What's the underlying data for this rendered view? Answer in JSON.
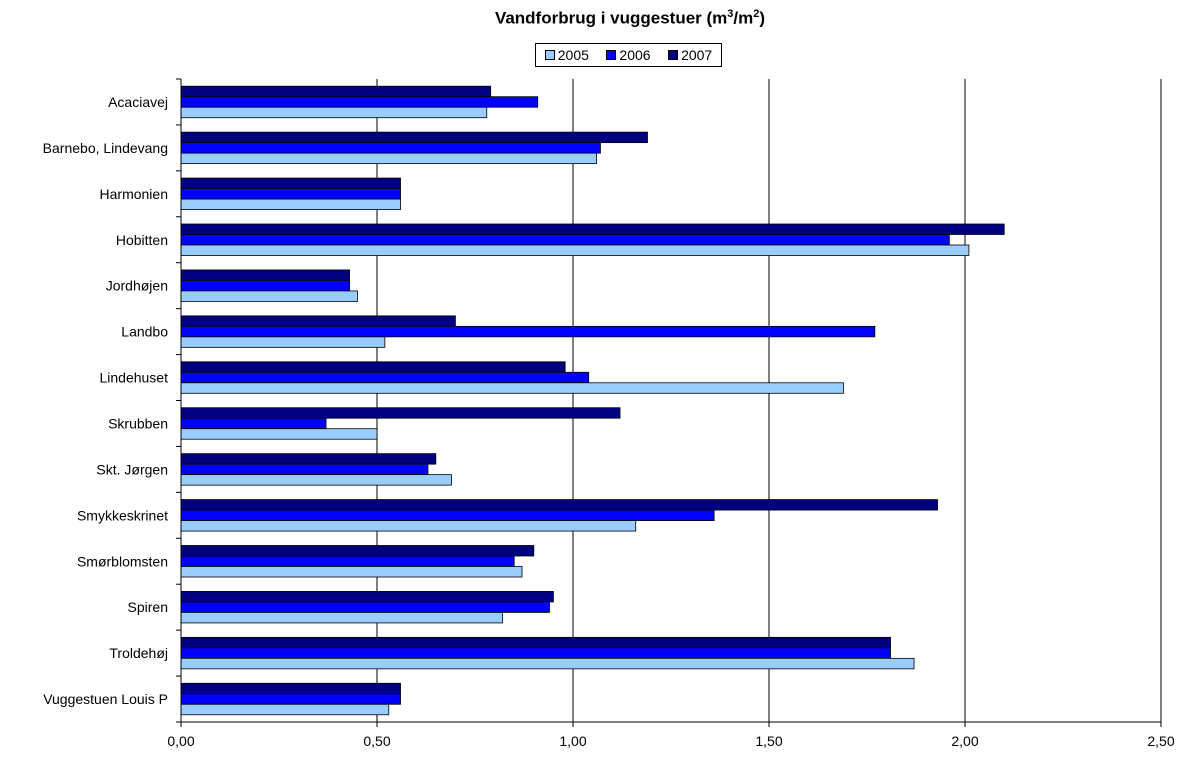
{
  "chart_data": {
    "type": "bar",
    "orientation": "horizontal",
    "title_main": "Vandforbrug i vuggestuer (m",
    "title_sup1": "3",
    "title_mid": "/m",
    "title_sup2": "2",
    "title_end": ")",
    "categories": [
      "Acaciavej",
      "Barnebo, Lindevang",
      "Harmonien",
      "Hobitten",
      "Jordhøjen",
      "Landbo",
      "Lindehuset",
      "Skrubben",
      "Skt. Jørgen",
      "Smykkeskrinet",
      "Smørblomsten",
      "Spiren",
      "Troldehøj",
      "Vuggestuen Louis P"
    ],
    "series": [
      {
        "name": "2005",
        "color": "#99CCFF",
        "values": [
          0.78,
          1.06,
          0.56,
          2.01,
          0.45,
          0.52,
          1.69,
          0.5,
          0.69,
          1.16,
          0.87,
          0.82,
          1.87,
          0.53
        ]
      },
      {
        "name": "2006",
        "color": "#0000FF",
        "values": [
          0.91,
          1.07,
          0.56,
          1.96,
          0.43,
          1.77,
          1.04,
          0.37,
          0.63,
          1.36,
          0.85,
          0.94,
          1.81,
          0.56
        ]
      },
      {
        "name": "2007",
        "color": "#000080",
        "values": [
          0.79,
          1.19,
          0.56,
          2.1,
          0.43,
          0.7,
          0.98,
          1.12,
          0.65,
          1.93,
          0.9,
          0.95,
          1.81,
          0.56
        ]
      }
    ],
    "xlim": [
      0,
      2.5
    ],
    "xticks": [
      "0,00",
      "0,50",
      "1,00",
      "1,50",
      "2,00",
      "2,50"
    ],
    "grid": true,
    "legend_position": "top"
  }
}
